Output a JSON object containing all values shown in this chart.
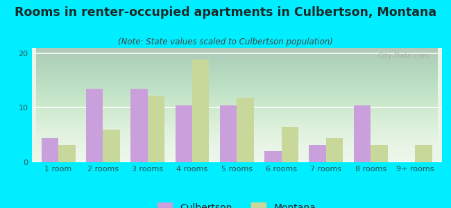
{
  "title": "Rooms in renter-occupied apartments in Culbertson, Montana",
  "subtitle": "(Note: State values scaled to Culbertson population)",
  "categories": [
    "1 room",
    "2 rooms",
    "3 rooms",
    "4 rooms",
    "5 rooms",
    "6 rooms",
    "7 rooms",
    "8 rooms",
    "9+ rooms"
  ],
  "culbertson": [
    4.5,
    13.5,
    13.5,
    10.5,
    10.5,
    2.0,
    3.2,
    10.5,
    0
  ],
  "montana": [
    3.2,
    6.0,
    12.2,
    18.8,
    11.8,
    6.5,
    4.5,
    3.2,
    3.2
  ],
  "culbertson_color": "#c9a0dc",
  "montana_color": "#c8d89a",
  "background_outer": "#00eeff",
  "background_plot_top": "#e8f5e8",
  "background_plot_bottom": "#f8fff8",
  "ylim": [
    0,
    21
  ],
  "yticks": [
    0,
    10,
    20
  ],
  "bar_width": 0.38,
  "title_fontsize": 12.5,
  "subtitle_fontsize": 8.5,
  "tick_fontsize": 8,
  "legend_fontsize": 10,
  "watermark": "City-Data.com"
}
